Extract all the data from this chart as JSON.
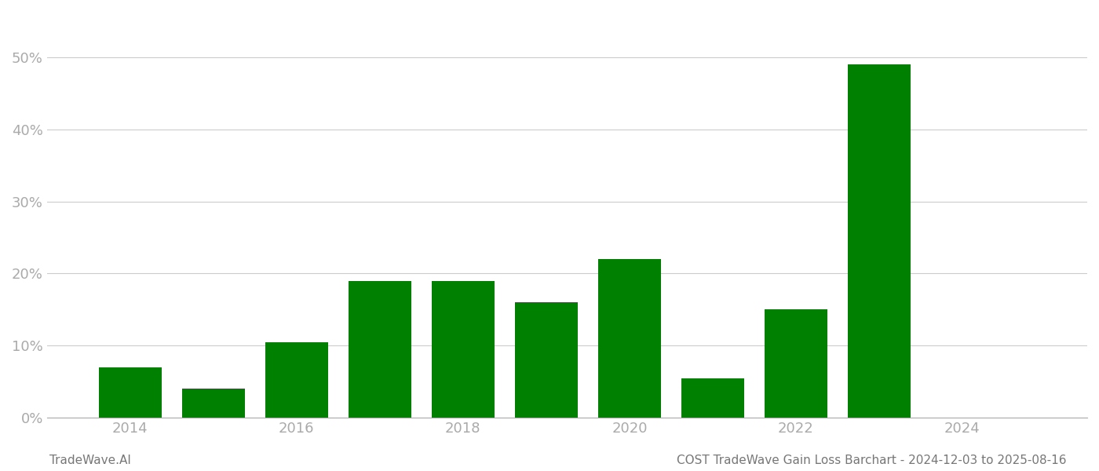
{
  "years": [
    2014,
    2015,
    2016,
    2017,
    2018,
    2019,
    2020,
    2021,
    2022,
    2023
  ],
  "values": [
    7.0,
    4.0,
    10.5,
    19.0,
    19.0,
    16.0,
    22.0,
    5.5,
    15.0,
    49.0
  ],
  "bar_color": "#008000",
  "ylim": [
    0,
    55
  ],
  "yticks": [
    0,
    10,
    20,
    30,
    40,
    50
  ],
  "ytick_labels": [
    "0%",
    "10%",
    "20%",
    "30%",
    "40%",
    "50%"
  ],
  "tick_fontsize": 13,
  "grid_color": "#cccccc",
  "axis_color": "#aaaaaa",
  "tick_color": "#aaaaaa",
  "footer_left": "TradeWave.AI",
  "footer_right": "COST TradeWave Gain Loss Barchart - 2024-12-03 to 2025-08-16",
  "footer_fontsize": 11,
  "background_color": "#ffffff",
  "bar_width": 0.75,
  "xlim_left": 2013.0,
  "xlim_right": 2025.5,
  "xticks": [
    2014,
    2016,
    2018,
    2020,
    2022,
    2024
  ]
}
